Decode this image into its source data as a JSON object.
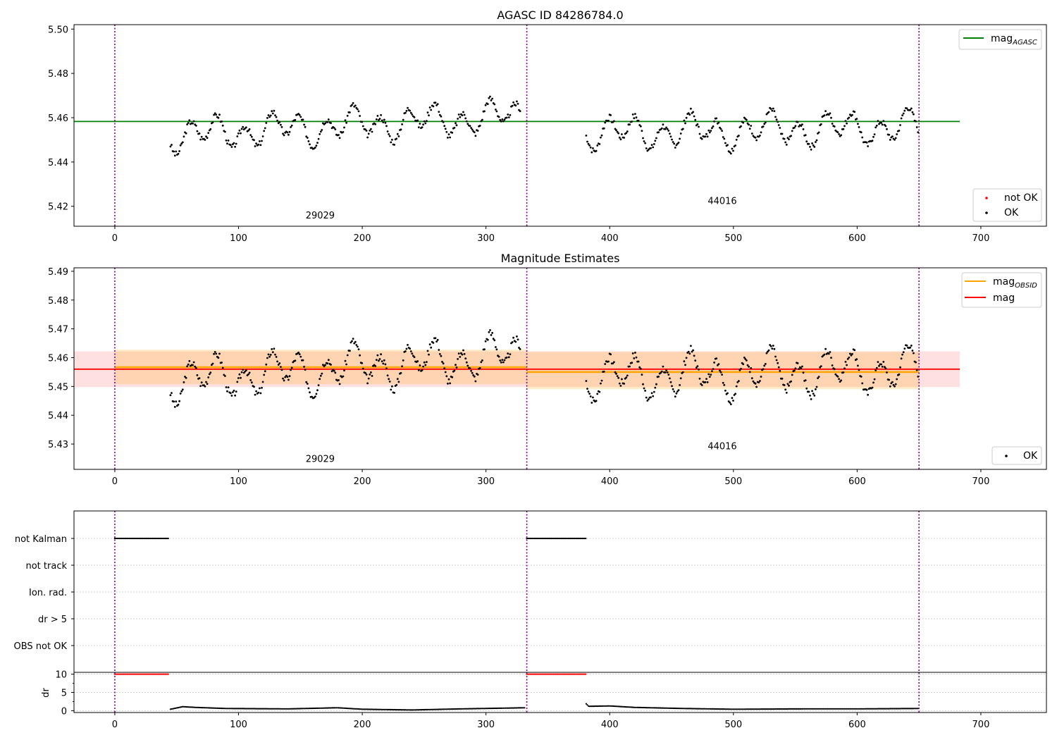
{
  "chart_data": [
    {
      "type": "scatter",
      "title": "AGASC ID 84286784.0",
      "xlim": [
        -33,
        753
      ],
      "ylim": [
        5.411,
        5.502
      ],
      "xticks": [
        0,
        100,
        200,
        300,
        400,
        500,
        600,
        700
      ],
      "yticks": [
        5.42,
        5.44,
        5.46,
        5.48,
        5.5
      ],
      "ytick_labels": [
        "5.42",
        "5.44",
        "5.46",
        "5.48",
        "5.50"
      ],
      "obs_boundaries": [
        0,
        333,
        650
      ],
      "obsid_labels": [
        {
          "text": "29029",
          "x": 166,
          "y": 5.4145
        },
        {
          "text": "44016",
          "x": 491,
          "y": 5.421
        }
      ],
      "mag_agasc": {
        "value": 5.4583,
        "x_start": -33,
        "x_end": 683
      },
      "series_segments": [
        {
          "x_start": 45,
          "x_end": 328,
          "center": 5.4565,
          "amp": 0.0075,
          "trend": 0.009,
          "seed": 3
        },
        {
          "x_start": 381,
          "x_end": 650,
          "center": 5.4545,
          "amp": 0.0075,
          "trend": 0.003,
          "seed": 7
        }
      ],
      "legend_upper": [
        {
          "label": "mag",
          "sub": "AGASC",
          "color": "#008000"
        }
      ],
      "legend_lower": [
        {
          "label": "not OK",
          "color": "#ff0000"
        },
        {
          "label": "OK",
          "color": "#000000"
        }
      ]
    },
    {
      "type": "scatter",
      "title": "Magnitude Estimates",
      "xlim": [
        -33,
        753
      ],
      "ylim": [
        5.4212,
        5.4912
      ],
      "xticks": [
        0,
        100,
        200,
        300,
        400,
        500,
        600,
        700
      ],
      "yticks": [
        5.43,
        5.44,
        5.45,
        5.46,
        5.47,
        5.48,
        5.49
      ],
      "ytick_labels": [
        "5.43",
        "5.44",
        "5.45",
        "5.46",
        "5.47",
        "5.48",
        "5.49"
      ],
      "obs_boundaries": [
        0,
        333,
        650
      ],
      "obsid_labels": [
        {
          "text": "29029",
          "x": 166,
          "y": 5.4238
        },
        {
          "text": "44016",
          "x": 491,
          "y": 5.4282
        }
      ],
      "mag": {
        "value": 5.456,
        "lo": 5.4498,
        "hi": 5.4622,
        "x_start": -33,
        "x_end": 683
      },
      "mag_obsid": [
        {
          "value": 5.4567,
          "lo": 5.4508,
          "hi": 5.4628,
          "x_start": 0,
          "x_end": 333
        },
        {
          "value": 5.455,
          "lo": 5.449,
          "hi": 5.462,
          "x_start": 333,
          "x_end": 650
        }
      ],
      "series_segments": [
        {
          "x_start": 45,
          "x_end": 328,
          "center": 5.4565,
          "amp": 0.0075,
          "trend": 0.009,
          "seed": 3
        },
        {
          "x_start": 381,
          "x_end": 650,
          "center": 5.4545,
          "amp": 0.0075,
          "trend": 0.003,
          "seed": 7
        }
      ],
      "legend_upper": [
        {
          "label": "mag",
          "sub": "OBSID",
          "color": "#ffa500"
        },
        {
          "label": "mag",
          "sub": "",
          "color": "#ff0000"
        }
      ],
      "legend_lower": [
        {
          "label": "OK",
          "color": "#000000"
        }
      ]
    },
    {
      "type": "scatter",
      "title": "",
      "xlim": [
        -33,
        753
      ],
      "xticks": [
        0,
        100,
        200,
        300,
        400,
        500,
        600,
        700
      ],
      "obs_boundaries": [
        0,
        333,
        650
      ],
      "flag_rows": [
        "not Kalman",
        "not track",
        "Ion. rad.",
        "dr > 5",
        "OBS not OK"
      ],
      "flag_ranges": [
        {
          "row": "not Kalman",
          "x_start": 0,
          "x_end": 44
        },
        {
          "row": "not Kalman",
          "x_start": 333,
          "x_end": 381
        }
      ],
      "dr": {
        "ylabel": "dr",
        "ylim": [
          -0.5,
          10.5
        ],
        "yticks": [
          0,
          5,
          10
        ],
        "ytick_labels": [
          "0",
          "5",
          "10"
        ],
        "minor_ticks": [
          2.5,
          7.5
        ],
        "clipped_value": 10,
        "clipped_ranges": [
          {
            "x_start": 0,
            "x_end": 44
          },
          {
            "x_start": 333,
            "x_end": 381
          }
        ],
        "segments": [
          {
            "x_start": 45,
            "x_end": 332,
            "points": [
              [
                45,
                0.4
              ],
              [
                55,
                1.1
              ],
              [
                65,
                0.9
              ],
              [
                90,
                0.6
              ],
              [
                140,
                0.5
              ],
              [
                180,
                0.8
              ],
              [
                200,
                0.4
              ],
              [
                240,
                0.2
              ],
              [
                280,
                0.5
              ],
              [
                332,
                0.8
              ]
            ]
          },
          {
            "x_start": 381,
            "x_end": 650,
            "points": [
              [
                381,
                1.9
              ],
              [
                383,
                1.2
              ],
              [
                400,
                1.3
              ],
              [
                420,
                0.9
              ],
              [
                460,
                0.6
              ],
              [
                500,
                0.4
              ],
              [
                560,
                0.5
              ],
              [
                600,
                0.5
              ],
              [
                650,
                0.6
              ]
            ]
          }
        ]
      }
    }
  ]
}
